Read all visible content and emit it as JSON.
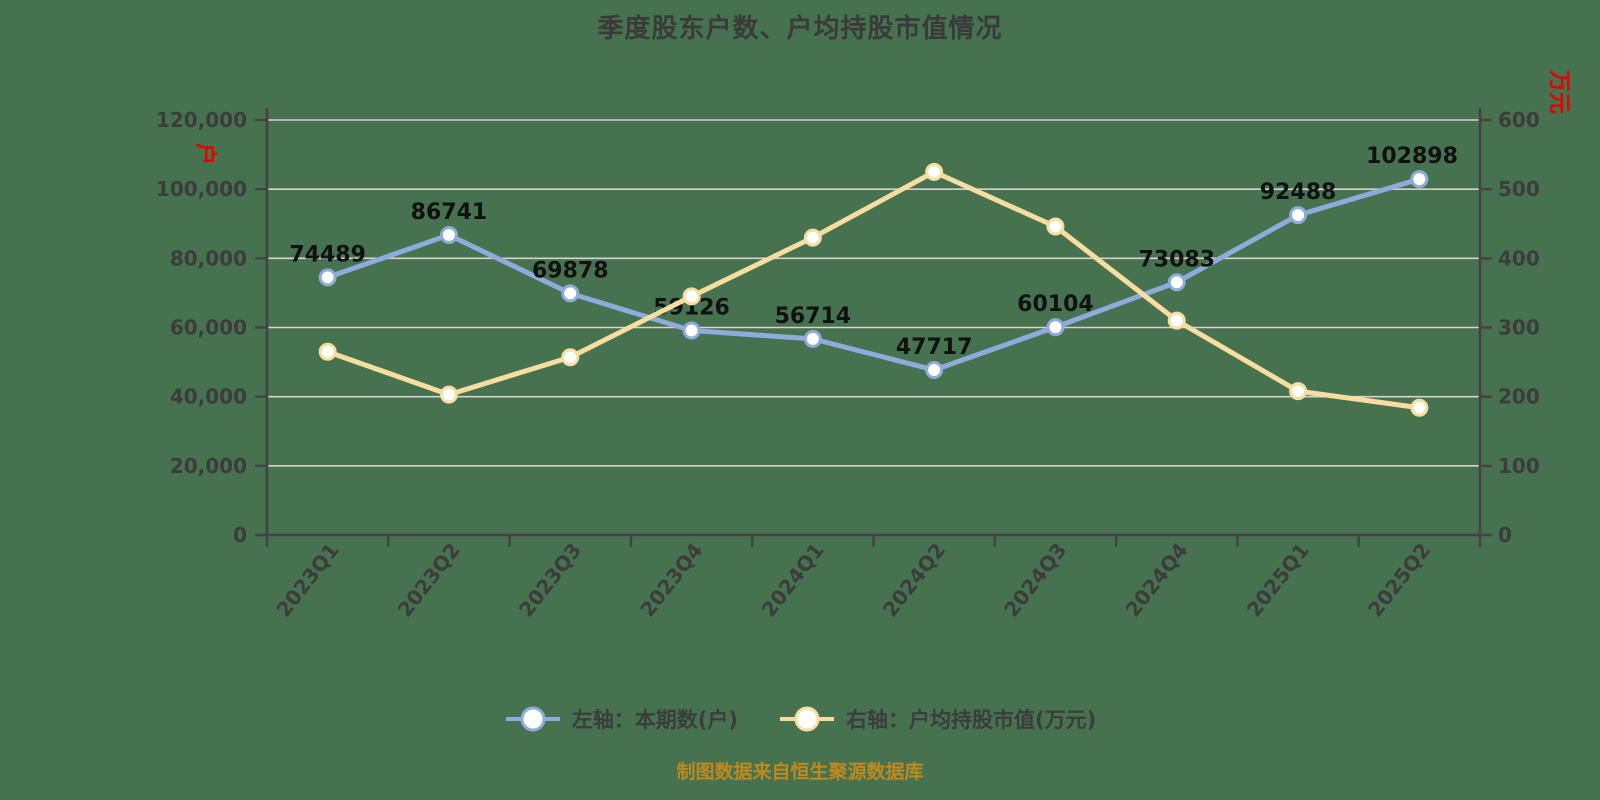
{
  "header": {
    "title": "季度股东户数、户均持股市值情况"
  },
  "footer": {
    "text": "制图数据来自恒生聚源数据库"
  },
  "colors": {
    "background": "#47724F",
    "title": "#3A3A3A",
    "axis_text": "#3C3C3C",
    "axis_line": "#434343",
    "gridline": "#D6D3CC",
    "data_label": "#111111",
    "footer_text": "#BE8A1E",
    "unit_label": "#E80000",
    "marker_fill": "#FFFFFF"
  },
  "chart_data": {
    "type": "line",
    "title": "季度股东户数、户均持股市值情况",
    "categories": [
      "2023Q1",
      "2023Q2",
      "2023Q3",
      "2023Q4",
      "2024Q1",
      "2024Q2",
      "2024Q3",
      "2024Q4",
      "2025Q1",
      "2025Q2"
    ],
    "series": [
      {
        "name": "左轴：本期数(户)",
        "axis": "left",
        "color": "#8EABDB",
        "marker": "circle",
        "data_labels": true,
        "values": [
          74489,
          86741,
          69878,
          59126,
          56714,
          47717,
          60104,
          73083,
          92488,
          102898
        ]
      },
      {
        "name": "右轴：户均持股市值(万元)",
        "axis": "right",
        "color": "#F7DDA0",
        "marker": "circle",
        "data_labels": false,
        "values_estimated": true,
        "values": [
          265,
          203,
          257,
          345,
          430,
          525,
          446,
          310,
          208,
          184
        ]
      }
    ],
    "left_axis": {
      "min": 0,
      "max": 120000,
      "tick_step": 20000,
      "unit": "户",
      "tick_labels": [
        "0",
        "20,000",
        "40,000",
        "60,000",
        "80,000",
        "100,000",
        "120,000"
      ]
    },
    "right_axis": {
      "min": 0,
      "max": 600,
      "tick_step": 100,
      "unit": "万元",
      "tick_labels": [
        "0",
        "100",
        "200",
        "300",
        "400",
        "500",
        "600"
      ]
    },
    "grid": true,
    "legend_position": "bottom"
  }
}
